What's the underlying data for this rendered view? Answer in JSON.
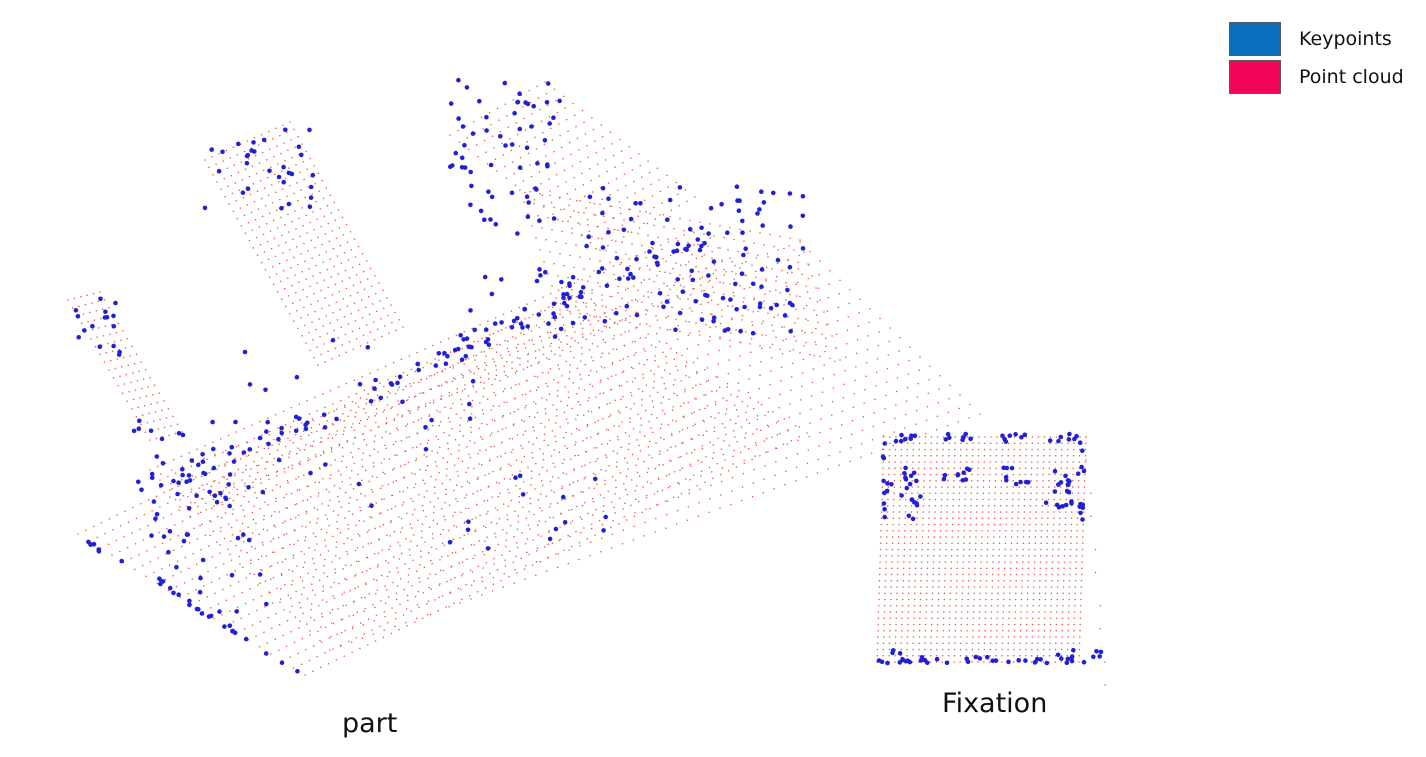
{
  "legend": [
    {
      "label": "Keypoints",
      "color": "#0a6ebd"
    },
    {
      "label": "Point cloud",
      "color": "#f2065a"
    }
  ],
  "colors": {
    "keypoint_dots": "#2020d8",
    "cloud_dots": "#e8524a"
  },
  "captions": {
    "part": "part",
    "fixation": "Fixation"
  }
}
